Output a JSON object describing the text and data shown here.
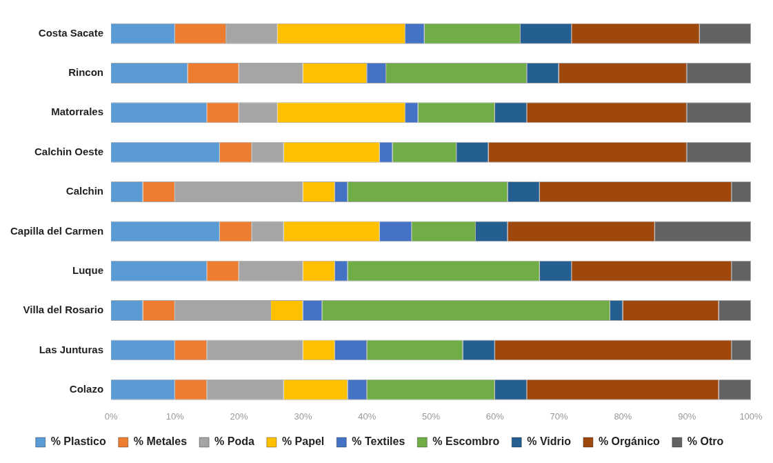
{
  "chart_data": {
    "type": "bar",
    "orientation": "horizontal",
    "stacked": true,
    "categories": [
      "Costa Sacate",
      "Rincon",
      "Matorrales",
      "Calchin Oeste",
      "Calchin",
      "Capilla del Carmen",
      "Luque",
      "Villa del Rosario",
      "Las Junturas",
      "Colazo"
    ],
    "series": [
      {
        "name": "% Plastico",
        "color": "#5b9bd5",
        "values": [
          10,
          12,
          15,
          17,
          5,
          17,
          15,
          5,
          10,
          10
        ]
      },
      {
        "name": "% Metales",
        "color": "#ed7d31",
        "values": [
          8,
          8,
          5,
          5,
          5,
          5,
          5,
          5,
          5,
          5
        ]
      },
      {
        "name": "% Poda",
        "color": "#a5a5a5",
        "values": [
          8,
          10,
          6,
          5,
          20,
          5,
          10,
          15,
          15,
          12
        ]
      },
      {
        "name": "% Papel",
        "color": "#ffc000",
        "values": [
          20,
          10,
          20,
          15,
          5,
          15,
          5,
          5,
          5,
          10
        ]
      },
      {
        "name": "% Textiles",
        "color": "#4472c4",
        "values": [
          3,
          3,
          2,
          2,
          2,
          5,
          2,
          3,
          5,
          3
        ]
      },
      {
        "name": "% Escombro",
        "color": "#70ad47",
        "values": [
          15,
          22,
          12,
          10,
          25,
          10,
          30,
          45,
          15,
          20
        ]
      },
      {
        "name": "% Vidrio",
        "color": "#255e91",
        "values": [
          8,
          5,
          5,
          5,
          5,
          5,
          5,
          2,
          5,
          5
        ]
      },
      {
        "name": "% Orgánico",
        "color": "#9e480e",
        "values": [
          20,
          20,
          25,
          31,
          30,
          23,
          25,
          15,
          37,
          30
        ]
      },
      {
        "name": "% Otro",
        "color": "#636363",
        "values": [
          8,
          10,
          10,
          10,
          3,
          15,
          3,
          5,
          3,
          5
        ]
      }
    ],
    "xlim": [
      0,
      100
    ],
    "xticks": [
      {
        "value": 0,
        "label": "0%"
      },
      {
        "value": 10,
        "label": "10%"
      },
      {
        "value": 20,
        "label": "20%"
      },
      {
        "value": 30,
        "label": "30%"
      },
      {
        "value": 40,
        "label": "40%"
      },
      {
        "value": 50,
        "label": "50%"
      },
      {
        "value": 60,
        "label": "60%"
      },
      {
        "value": 70,
        "label": "70%"
      },
      {
        "value": 80,
        "label": "80%"
      },
      {
        "value": 90,
        "label": "90%"
      },
      {
        "value": 100,
        "label": "100%"
      }
    ],
    "grid": false,
    "legend": "bottom"
  }
}
